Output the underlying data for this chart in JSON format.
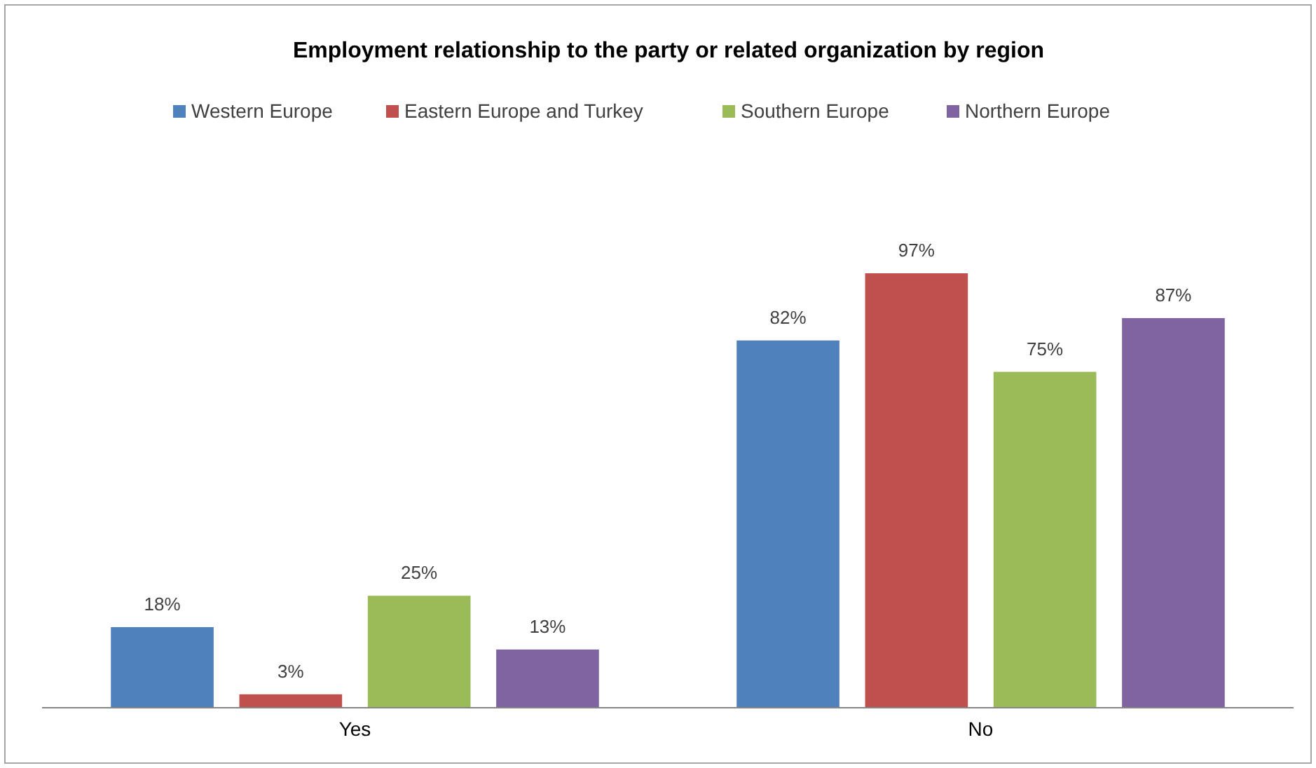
{
  "chart_data": {
    "type": "bar",
    "title": "Employment relationship to the party or related organization by region",
    "categories": [
      "Yes",
      "No"
    ],
    "relative": false,
    "legend": "top",
    "series": [
      {
        "name": "Western Europe",
        "color": "#4f81bd",
        "values": [
          18,
          82
        ],
        "value_labels": [
          "18%",
          "82%"
        ]
      },
      {
        "name": "Eastern Europe and Turkey",
        "color": "#c0504d",
        "values": [
          3,
          97
        ],
        "value_labels": [
          "3%",
          "97%"
        ]
      },
      {
        "name": "Southern Europe",
        "color": "#9bbb59",
        "values": [
          25,
          75
        ],
        "value_labels": [
          "25%",
          "75%"
        ]
      },
      {
        "name": "Northern Europe",
        "color": "#8064a2",
        "values": [
          13,
          87
        ],
        "value_labels": [
          "13%",
          "87%"
        ]
      }
    ]
  }
}
